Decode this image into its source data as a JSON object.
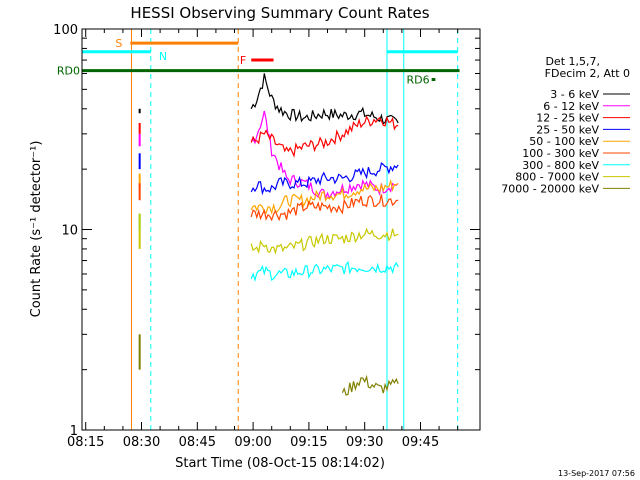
{
  "chart_data": {
    "type": "line",
    "title": "HESSI Observing Summary Count Rates",
    "xlabel": "Start Time (08-Oct-15 08:14:02)",
    "ylabel": "Count Rate (s⁻¹ detector⁻¹)",
    "x_ticks": [
      "08:15",
      "08:30",
      "08:45",
      "09:00",
      "09:15",
      "09:30",
      "09:45"
    ],
    "y_ticks": [
      "1",
      "10",
      "100"
    ],
    "x_range_minutes": [
      0,
      107
    ],
    "ylim": [
      1,
      100
    ],
    "y_scale": "log",
    "grid": false,
    "legend_position": "right",
    "legend_header": [
      "Det 1,5,7,",
      "FDecim 2, Att 0"
    ],
    "series": [
      {
        "name": "3 - 6 keV",
        "color": "#000000",
        "before_gap": [
          38,
          40
        ],
        "x": [
          45.5,
          47,
          49,
          51,
          53,
          55,
          60,
          65,
          70,
          75,
          80,
          85
        ],
        "values": [
          40,
          45,
          57,
          45,
          40,
          38,
          36,
          38,
          37,
          38,
          36,
          34
        ]
      },
      {
        "name": "6 - 12 keV",
        "color": "#ff00ff",
        "before_gap": [
          26,
          30
        ],
        "x": [
          45.5,
          47,
          49,
          51,
          53,
          55,
          60,
          65,
          70,
          75,
          80,
          85
        ],
        "values": [
          27,
          30,
          38,
          25,
          21,
          18,
          17,
          15,
          16,
          17,
          16,
          17
        ]
      },
      {
        "name": "12 - 25 keV",
        "color": "#ff0000",
        "before_gap": [
          30,
          34
        ],
        "x": [
          45.5,
          47,
          49,
          51,
          53,
          55,
          60,
          65,
          70,
          75,
          80,
          85
        ],
        "values": [
          27,
          28,
          30,
          28,
          26,
          24,
          26,
          27,
          30,
          34,
          36,
          33
        ]
      },
      {
        "name": "25 - 50 keV",
        "color": "#0000ff",
        "before_gap": [
          20,
          24
        ],
        "x": [
          45.5,
          47,
          49,
          51,
          53,
          55,
          60,
          65,
          70,
          75,
          80,
          85
        ],
        "values": [
          16,
          17,
          16,
          16,
          17,
          17,
          17,
          18,
          18,
          19,
          20,
          21
        ]
      },
      {
        "name": "50 - 100 keV",
        "color": "#ffa500",
        "before_gap": [
          16,
          19
        ],
        "x": [
          45.5,
          47,
          49,
          51,
          53,
          55,
          60,
          65,
          70,
          75,
          80,
          85
        ],
        "values": [
          13,
          13,
          13,
          13,
          13,
          14,
          14,
          15,
          15,
          16,
          16,
          17
        ]
      },
      {
        "name": "100 - 300 keV",
        "color": "#ff4500",
        "before_gap": [
          14,
          17
        ],
        "x": [
          45.5,
          47,
          49,
          51,
          53,
          55,
          60,
          65,
          70,
          75,
          80,
          85
        ],
        "values": [
          12,
          12,
          12,
          12,
          12,
          12,
          13,
          13,
          13,
          14,
          14,
          14
        ]
      },
      {
        "name": "300 - 800 keV",
        "color": "#00ffff",
        "before_gap": [
          10,
          12
        ],
        "x": [
          45.5,
          47,
          49,
          51,
          53,
          55,
          60,
          65,
          70,
          75,
          80,
          85
        ],
        "values": [
          6,
          6,
          6.2,
          6,
          6,
          6,
          6.2,
          6.3,
          6.4,
          6.5,
          6.5,
          6.5
        ]
      },
      {
        "name": "800 - 7000 keV",
        "color": "#c8c800",
        "before_gap": [
          8,
          12
        ],
        "x": [
          45.5,
          47,
          49,
          51,
          53,
          55,
          60,
          65,
          70,
          75,
          80,
          85
        ],
        "values": [
          8,
          8,
          8.5,
          8,
          8,
          8,
          8.5,
          9,
          9,
          9.5,
          9.5,
          9.5
        ]
      },
      {
        "name": "7000 - 20000 keV",
        "color": "#808000",
        "before_gap": [
          2,
          3
        ],
        "x": [
          70,
          75,
          80,
          85
        ],
        "values": [
          1.5,
          1.8,
          1.6,
          1.7
        ]
      }
    ],
    "annotations": [
      {
        "label": "S",
        "color": "#ff8000",
        "x_start": 13,
        "x_end": 42,
        "y": 85
      },
      {
        "label": "N",
        "color": "#00ffff",
        "x_start": 0,
        "x_end": 18.5,
        "y": 77
      },
      {
        "label": "",
        "color": "#00ffff",
        "x_start": 82,
        "x_end": 101,
        "y": 77
      },
      {
        "label": "F",
        "color": "#ff0000",
        "x_start": 45.5,
        "x_end": 51.5,
        "y": 70
      },
      {
        "label": "RD0",
        "color": "#006400",
        "x_start": 0,
        "x_end": 101.5,
        "y": 62
      },
      {
        "label": "RD6",
        "color": "#006400",
        "x_start": 94,
        "x_end": 95,
        "y": 56
      }
    ],
    "vertical_lines": [
      {
        "x": 0,
        "color": "#00ffff",
        "style": "solid"
      },
      {
        "x": 13.3,
        "color": "#ff8000",
        "style": "solid"
      },
      {
        "x": 18.5,
        "color": "#00ffff",
        "style": "dashed"
      },
      {
        "x": 42,
        "color": "#ff8000",
        "style": "dashed"
      },
      {
        "x": 82,
        "color": "#00ffff",
        "style": "solid"
      },
      {
        "x": 86.5,
        "color": "#00ffff",
        "style": "solid"
      },
      {
        "x": 101,
        "color": "#00ffff",
        "style": "dashed"
      }
    ]
  },
  "footer": {
    "timestamp": "13-Sep-2017 07:56"
  }
}
